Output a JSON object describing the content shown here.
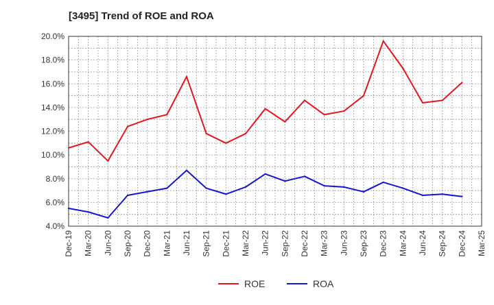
{
  "chart_data": {
    "type": "line",
    "title": "[3495]  Trend of ROE and ROA",
    "xlabel": "",
    "ylabel": "",
    "categories": [
      "Dec-19",
      "Mar-20",
      "Jun-20",
      "Sep-20",
      "Dec-20",
      "Mar-21",
      "Jun-21",
      "Sep-21",
      "Dec-21",
      "Mar-22",
      "Jun-22",
      "Sep-22",
      "Dec-22",
      "Mar-23",
      "Jun-23",
      "Sep-23",
      "Dec-23",
      "Mar-24",
      "Jun-24",
      "Sep-24",
      "Dec-24",
      "Mar-25"
    ],
    "ylim": [
      4.0,
      20.0
    ],
    "yticks": [
      4.0,
      6.0,
      8.0,
      10.0,
      12.0,
      14.0,
      16.0,
      18.0,
      20.0
    ],
    "ytick_labels": [
      "4.0%",
      "6.0%",
      "8.0%",
      "10.0%",
      "12.0%",
      "14.0%",
      "16.0%",
      "18.0%",
      "20.0%"
    ],
    "grid": true,
    "legend_position": "bottom-center",
    "series": [
      {
        "name": "ROE",
        "color": "#e8141c",
        "values": [
          10.6,
          11.1,
          9.5,
          12.4,
          13.0,
          13.4,
          16.6,
          11.8,
          11.0,
          11.8,
          13.9,
          12.8,
          14.6,
          13.4,
          13.7,
          15.0,
          19.6,
          17.3,
          14.4,
          14.6,
          16.1,
          null
        ]
      },
      {
        "name": "ROA",
        "color": "#1414d2",
        "values": [
          5.5,
          5.2,
          4.7,
          6.6,
          6.9,
          7.2,
          8.7,
          7.2,
          6.7,
          7.3,
          8.4,
          7.8,
          8.2,
          7.4,
          7.3,
          6.9,
          7.7,
          7.2,
          6.6,
          6.7,
          6.5,
          null
        ]
      }
    ]
  }
}
